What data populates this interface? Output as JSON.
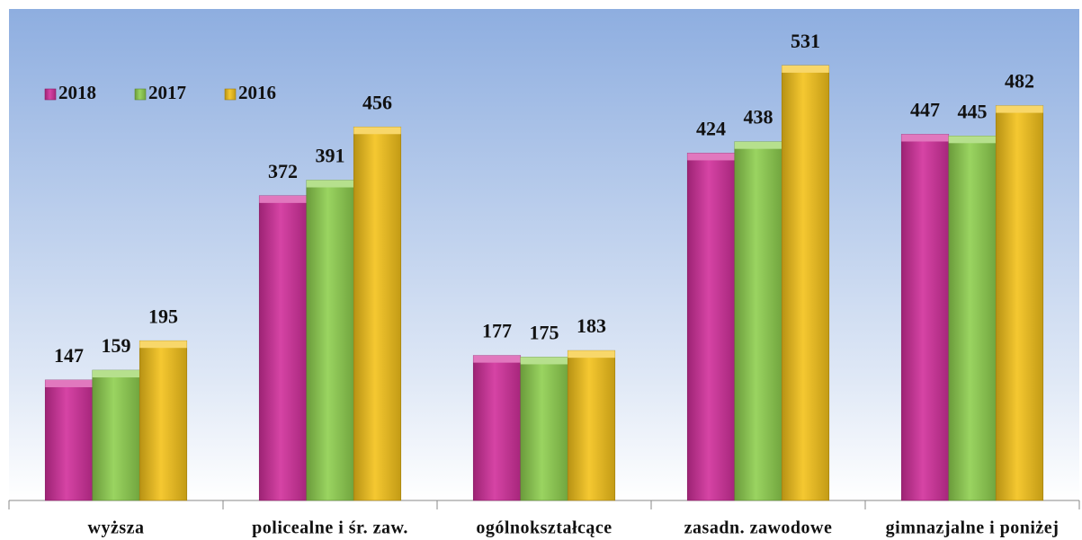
{
  "chart_data": {
    "type": "bar",
    "categories": [
      "wyższa",
      "policealne i śr. zaw.",
      "ogólnokształcące",
      "zasadn. zawodowe",
      "gimnazjalne i poniżej"
    ],
    "series": [
      {
        "name": "2018",
        "color": "#d12f9b",
        "values": [
          147,
          372,
          177,
          424,
          447
        ]
      },
      {
        "name": "2017",
        "color": "#8fcf4f",
        "values": [
          159,
          391,
          175,
          438,
          445
        ]
      },
      {
        "name": "2016",
        "color": "#f4c21a",
        "values": [
          195,
          456,
          183,
          531,
          482
        ]
      }
    ],
    "ylim": [
      0,
      600
    ],
    "legend": "top-left"
  }
}
